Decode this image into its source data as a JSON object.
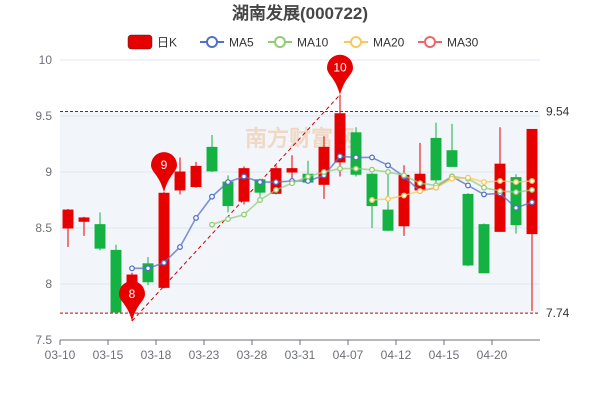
{
  "chart_data": {
    "type": "candlestick",
    "title": "湖南发展(000722)",
    "legend": [
      {
        "name": "日K",
        "color": "#e60000"
      },
      {
        "name": "MA5",
        "color": "#5470c6"
      },
      {
        "name": "MA10",
        "color": "#91cc75"
      },
      {
        "name": "MA20",
        "color": "#fac858"
      },
      {
        "name": "MA30",
        "color": "#ee6666"
      }
    ],
    "x_tick_labels": [
      "03-10",
      "03-15",
      "03-18",
      "03-23",
      "03-28",
      "03-31",
      "04-07",
      "04-12",
      "04-15",
      "04-20"
    ],
    "x_tick_indices": [
      0,
      3,
      6,
      9,
      12,
      15,
      18,
      21,
      24,
      27
    ],
    "ylim": [
      7.5,
      10
    ],
    "yticks": [
      "7.5",
      "8",
      "8.5",
      "9",
      "9.5",
      "10"
    ],
    "candles": [
      {
        "o": 8.5,
        "c": 8.66,
        "h": 8.67,
        "l": 8.33
      },
      {
        "o": 8.56,
        "c": 8.59,
        "h": 8.6,
        "l": 8.43
      },
      {
        "o": 8.53,
        "c": 8.32,
        "h": 8.64,
        "l": 8.3
      },
      {
        "o": 8.3,
        "c": 7.75,
        "h": 8.35,
        "l": 7.75
      },
      {
        "o": 7.8,
        "c": 8.08,
        "h": 8.1,
        "l": 7.67
      },
      {
        "o": 8.18,
        "c": 8.02,
        "h": 8.24,
        "l": 7.99
      },
      {
        "o": 7.97,
        "c": 8.81,
        "h": 8.82,
        "l": 7.96
      },
      {
        "o": 8.84,
        "c": 9.0,
        "h": 9.13,
        "l": 8.8
      },
      {
        "o": 8.87,
        "c": 9.05,
        "h": 9.09,
        "l": 8.86
      },
      {
        "o": 9.22,
        "c": 9.01,
        "h": 9.33,
        "l": 9.0
      },
      {
        "o": 8.91,
        "c": 8.7,
        "h": 8.97,
        "l": 8.64
      },
      {
        "o": 8.74,
        "c": 9.03,
        "h": 9.05,
        "l": 8.71
      },
      {
        "o": 8.93,
        "c": 8.82,
        "h": 8.94,
        "l": 8.78
      },
      {
        "o": 8.81,
        "c": 9.03,
        "h": 9.06,
        "l": 8.8
      },
      {
        "o": 9.0,
        "c": 9.03,
        "h": 9.15,
        "l": 8.93
      },
      {
        "o": 8.98,
        "c": 8.91,
        "h": 9.1,
        "l": 8.9
      },
      {
        "o": 8.89,
        "c": 9.22,
        "h": 9.32,
        "l": 8.76
      },
      {
        "o": 9.09,
        "c": 9.52,
        "h": 9.69,
        "l": 8.96
      },
      {
        "o": 9.35,
        "c": 8.98,
        "h": 9.4,
        "l": 8.96
      },
      {
        "o": 8.98,
        "c": 8.7,
        "h": 8.99,
        "l": 8.5
      },
      {
        "o": 8.66,
        "c": 8.48,
        "h": 8.98,
        "l": 8.47
      },
      {
        "o": 8.52,
        "c": 8.97,
        "h": 9.06,
        "l": 8.43
      },
      {
        "o": 8.84,
        "c": 8.98,
        "h": 9.26,
        "l": 8.82
      },
      {
        "o": 9.3,
        "c": 8.93,
        "h": 9.44,
        "l": 8.9
      },
      {
        "o": 9.19,
        "c": 9.05,
        "h": 9.43,
        "l": 9.05
      },
      {
        "o": 8.8,
        "c": 8.17,
        "h": 8.81,
        "l": 8.16
      },
      {
        "o": 8.53,
        "c": 8.1,
        "h": 8.54,
        "l": 8.1
      },
      {
        "o": 8.47,
        "c": 9.07,
        "h": 9.4,
        "l": 8.47
      },
      {
        "o": 8.95,
        "c": 8.53,
        "h": 8.98,
        "l": 8.45
      },
      {
        "o": 8.45,
        "c": 9.38,
        "h": 9.38,
        "l": 7.76
      }
    ],
    "series": [
      {
        "name": "MA5",
        "values": [
          null,
          null,
          null,
          null,
          8.14,
          8.14,
          8.19,
          8.33,
          8.59,
          8.78,
          8.91,
          8.96,
          8.91,
          8.91,
          8.92,
          8.92,
          8.97,
          9.14,
          9.13,
          9.13,
          9.06,
          8.96,
          8.83,
          8.86,
          8.96,
          8.88,
          8.8,
          8.81,
          8.68,
          8.73
        ]
      },
      {
        "name": "MA10",
        "values": [
          null,
          null,
          null,
          null,
          null,
          null,
          null,
          null,
          null,
          8.53,
          8.58,
          8.62,
          8.75,
          8.84,
          8.9,
          8.96,
          9.0,
          9.03,
          9.03,
          9.02,
          9.0,
          8.97,
          8.9,
          8.88,
          8.96,
          8.94,
          8.86,
          8.83,
          8.82,
          8.84
        ]
      },
      {
        "name": "MA20",
        "values": [
          null,
          null,
          null,
          null,
          null,
          null,
          null,
          null,
          null,
          null,
          null,
          null,
          null,
          null,
          null,
          null,
          null,
          null,
          null,
          8.75,
          8.76,
          8.79,
          8.83,
          8.86,
          8.94,
          8.95,
          8.91,
          8.92,
          8.91,
          8.92
        ]
      },
      {
        "name": "MA30",
        "values": [
          null,
          null,
          null,
          null,
          null,
          null,
          null,
          null,
          null,
          null,
          null,
          null,
          null,
          null,
          null,
          null,
          null,
          null,
          null,
          null,
          null,
          null,
          null,
          null,
          null,
          null,
          null,
          null,
          null,
          null
        ]
      }
    ],
    "mark_lines": [
      {
        "value": 9.54,
        "label": "9.54"
      },
      {
        "value": 7.74,
        "label": "7.74"
      }
    ],
    "pins": [
      {
        "label": "8",
        "index": 4,
        "value": 7.67
      },
      {
        "label": "9",
        "index": 6,
        "value": 8.82
      },
      {
        "label": "10",
        "index": 17,
        "value": 9.69
      }
    ],
    "trend_line": {
      "from": {
        "index": 4,
        "value": 7.67
      },
      "to": {
        "index": 17,
        "value": 9.69
      }
    },
    "colors": {
      "up": "#e60000",
      "down": "#14b143",
      "grid": "#e0e6f1",
      "markline": "#cc0000",
      "band": "#f2f5fa",
      "pin": "#e60000"
    },
    "grid": true,
    "legend_position": "top-center"
  }
}
